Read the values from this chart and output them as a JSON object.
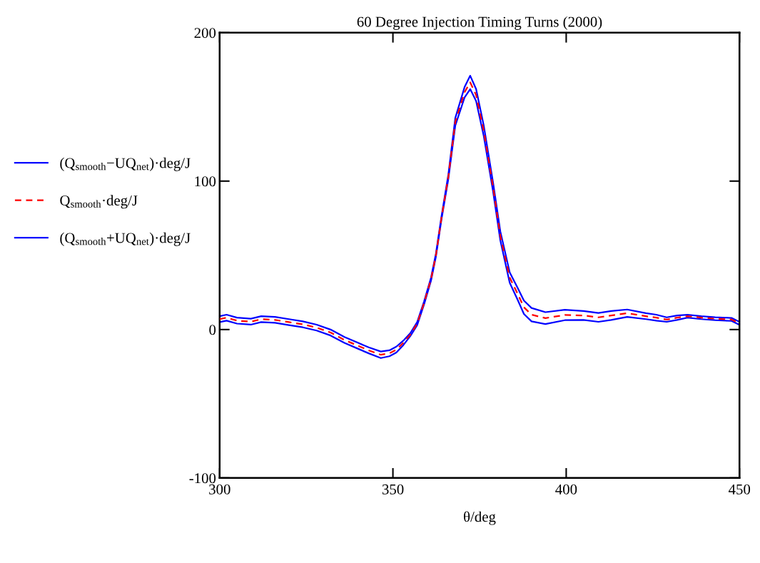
{
  "chart_data": {
    "type": "line",
    "title": "60 Degree Injection Timing Turns (2000)",
    "xlabel": "θ/deg",
    "x": [
      300,
      302,
      305,
      309,
      312,
      316,
      320,
      324,
      328,
      332,
      336,
      340,
      343,
      346.5,
      349,
      351,
      353,
      355,
      357,
      359,
      361,
      362.4,
      364,
      366,
      368,
      370.7,
      372.3,
      374,
      376.2,
      378.9,
      381,
      383.7,
      386,
      387.8,
      390,
      394,
      399.6,
      405,
      409.3,
      413,
      417.6,
      423,
      426,
      429,
      432,
      435,
      439,
      443,
      447.7,
      450
    ],
    "series": [
      {
        "name": "(Q$_{smooth}$−UQ$_{net}$)·deg/J",
        "color": "#0000ff",
        "line_style": "solid",
        "values": [
          5,
          6,
          4,
          3.3,
          5,
          4.5,
          3,
          1.5,
          -0.7,
          -4,
          -9,
          -13,
          -16,
          -19.2,
          -18,
          -15.5,
          -10.5,
          -4.5,
          3,
          17,
          33,
          49,
          74,
          101.5,
          137.5,
          156.5,
          162,
          154,
          130.5,
          93,
          60,
          31.5,
          20,
          10.5,
          5.5,
          3.7,
          6.3,
          6.5,
          5.2,
          6.5,
          8.5,
          7,
          6,
          5.2,
          6.5,
          8,
          7,
          6.3,
          5.8,
          3.2
        ]
      },
      {
        "name": "Q$_{smooth}$·deg/J",
        "color": "#ff0000",
        "line_style": "dashed",
        "values": [
          7,
          8,
          6,
          5.3,
          7,
          6.5,
          5,
          3.5,
          1.3,
          -2,
          -7,
          -11,
          -14,
          -17,
          -16,
          -13.5,
          -9,
          -3.5,
          4,
          18,
          34,
          50,
          75,
          103,
          140,
          160,
          166.5,
          158,
          134,
          96,
          63,
          35,
          24,
          15,
          10,
          7.7,
          9.8,
          9.5,
          8.2,
          9.5,
          11,
          9,
          8,
          6.7,
          8,
          9,
          8,
          7.3,
          6.8,
          4.2
        ]
      },
      {
        "name": "(Q$_{smooth}$+UQ$_{net}$)·deg/J",
        "color": "#0000ff",
        "line_style": "solid",
        "values": [
          9,
          10,
          8,
          7.3,
          9,
          8.5,
          7,
          5.5,
          3.3,
          0,
          -5,
          -9,
          -12,
          -14.8,
          -14,
          -11.5,
          -7.5,
          -2.5,
          5,
          19,
          35,
          51,
          76,
          104.5,
          142.5,
          163.5,
          171,
          162,
          137.5,
          99,
          66,
          38.5,
          28,
          19.5,
          14.5,
          11.7,
          13.3,
          12.5,
          11.2,
          12.5,
          13.5,
          11,
          10,
          8.2,
          9.5,
          10,
          9,
          8.3,
          7.8,
          5.2
        ]
      }
    ],
    "xlim": [
      300,
      450
    ],
    "ylim": [
      -100,
      200
    ],
    "xticks": [
      300,
      350,
      400,
      450
    ],
    "yticks": [
      -100,
      0,
      100,
      200
    ],
    "grid": false,
    "legend": "left"
  }
}
